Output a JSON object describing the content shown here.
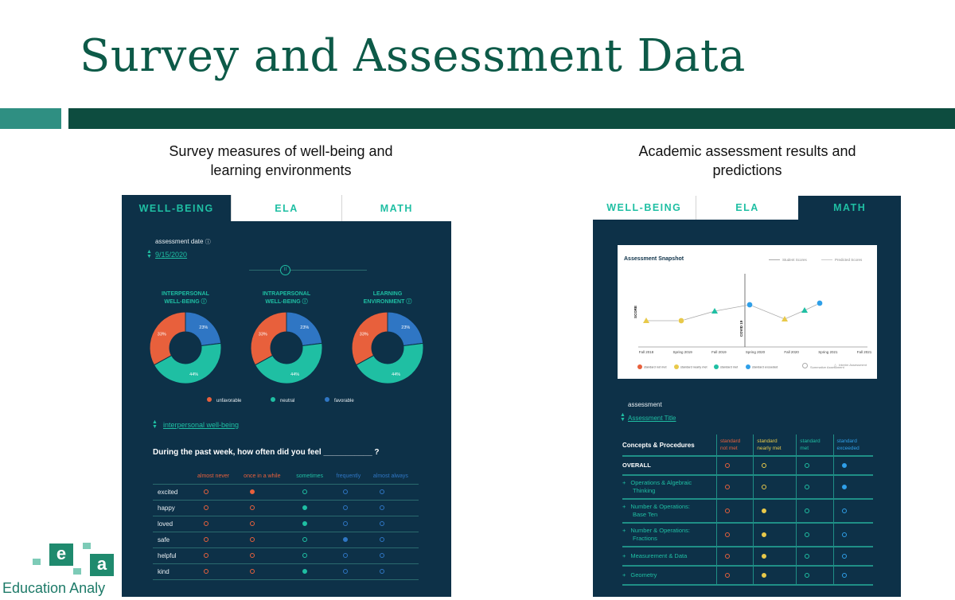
{
  "slide_title": "Survey and Assessment Data",
  "left_caption": {
    "line1": "Survey measures of well-being and",
    "line2": "learning environments"
  },
  "right_caption": {
    "line1": "Academic assessment results and",
    "line2": "predictions"
  },
  "left_panel": {
    "tabs": [
      "WELL-BEING",
      "ELA",
      "MATH"
    ],
    "assessment_date_label": "assessment date",
    "assessment_date_value": "9/15/2020",
    "donuts": [
      {
        "title1": "INTERPERSONAL",
        "title2": "WELL-BEING",
        "values": {
          "unfavorable": 33,
          "neutral": 44,
          "favorable": 23
        }
      },
      {
        "title1": "INTRAPERSONAL",
        "title2": "WELL-BEING",
        "values": {
          "unfavorable": 33,
          "neutral": 44,
          "favorable": 23
        }
      },
      {
        "title1": "LEARNING",
        "title2": "ENVIRONMENT",
        "values": {
          "unfavorable": 33,
          "neutral": 44,
          "favorable": 23
        }
      }
    ],
    "slice_labels": {
      "unfavorable": "33%",
      "neutral": "44%",
      "favorable": "23%"
    },
    "legend": [
      {
        "label": "unfavorable",
        "color": "#e8603c"
      },
      {
        "label": "neutral",
        "color": "#1fbfa3"
      },
      {
        "label": "favorable",
        "color": "#2f76c4"
      }
    ],
    "selector_value": "interpersonal well-being",
    "question": "During the past week, how often did you feel ___________ ?",
    "columns": [
      "almost never",
      "once in a while",
      "sometimes",
      "frequently",
      "almost always"
    ],
    "column_colors": [
      "#e8603c",
      "#e8603c",
      "#1fbfa3",
      "#2f76c4",
      "#2f76c4"
    ],
    "rows": [
      {
        "label": "excited",
        "filled": 1
      },
      {
        "label": "happy",
        "filled": 2
      },
      {
        "label": "loved",
        "filled": 2
      },
      {
        "label": "safe",
        "filled": 3
      },
      {
        "label": "helpful",
        "filled": -1
      },
      {
        "label": "kind",
        "filled": 2
      }
    ]
  },
  "right_panel": {
    "tabs": [
      "WELL-BEING",
      "ELA",
      "MATH"
    ],
    "snapshot": {
      "title": "Assessment Snapshot",
      "legend_student": "Student Scores",
      "legend_predicted": "Predicted Scores",
      "y_label": "SCORE",
      "covid_label": "COVID 19",
      "x_ticks": [
        "Fall 2018",
        "Spring 2019",
        "Fall 2019",
        "Spring 2020",
        "Fall 2020",
        "Spring 2021",
        "Fall 2021"
      ],
      "bottom_legend": [
        {
          "label": "standard not met",
          "color": "#e8603c"
        },
        {
          "label": "standard nearly met",
          "color": "#e8c94a"
        },
        {
          "label": "standard met",
          "color": "#1fbfa3"
        },
        {
          "label": "standard exceeded",
          "color": "#2f9fe8"
        }
      ],
      "summative": "Summative Assessment",
      "interim": "Interim Assessment"
    },
    "assessment_label": "assessment",
    "assessment_value": "Assessment Title",
    "concepts_header": "Concepts & Procedures",
    "standard_cols": [
      {
        "l1": "standard",
        "l2": "not met",
        "color": "#e8603c"
      },
      {
        "l1": "standard",
        "l2": "nearly met",
        "color": "#e8c94a"
      },
      {
        "l1": "standard",
        "l2": "met",
        "color": "#1fbfa3"
      },
      {
        "l1": "standard",
        "l2": "exceeded",
        "color": "#2f9fe8"
      }
    ],
    "concept_rows": [
      {
        "l1": "OVERALL",
        "l2": "",
        "plus": false,
        "filled": 3
      },
      {
        "l1": "Operations & Algebraic",
        "l2": "Thinking",
        "plus": true,
        "filled": 3
      },
      {
        "l1": "Number & Operations:",
        "l2": "Base Ten",
        "plus": true,
        "filled": 1
      },
      {
        "l1": "Number & Operations:",
        "l2": "Fractions",
        "plus": true,
        "filled": 1
      },
      {
        "l1": "Measurement & Data",
        "l2": "",
        "plus": true,
        "filled": 1
      },
      {
        "l1": "Geometry",
        "l2": "",
        "plus": true,
        "filled": 1
      }
    ]
  },
  "logo": {
    "letter1": "e",
    "letter2": "a",
    "text": "Education Analy"
  }
}
